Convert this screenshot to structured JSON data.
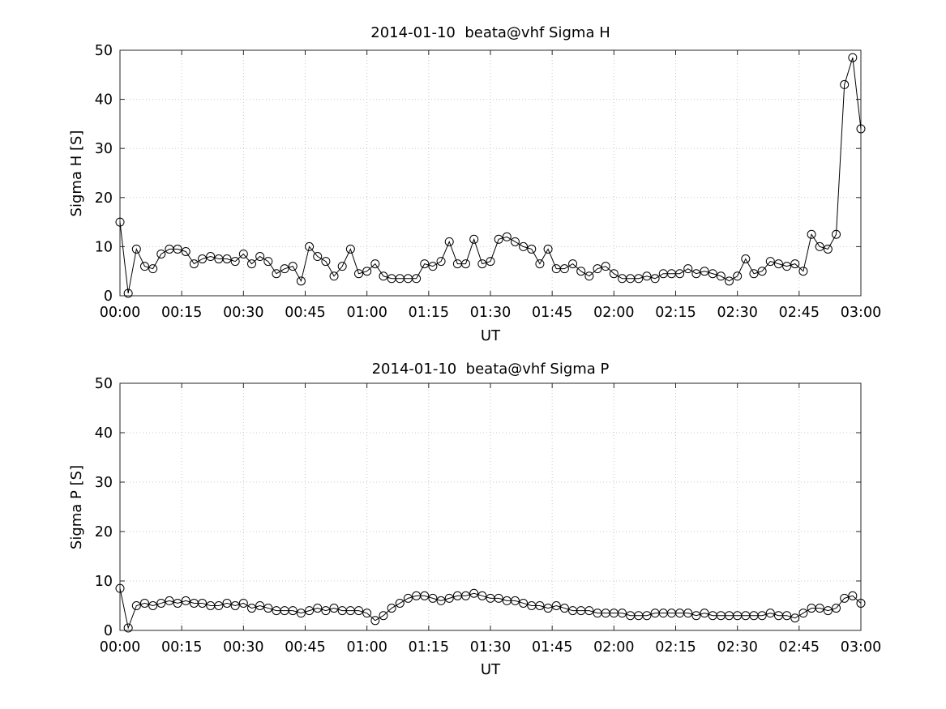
{
  "figure": {
    "background": "#ffffff",
    "axes_color": "#262626",
    "grid_color": "#c8c8c8"
  },
  "chart_data": [
    {
      "type": "line",
      "title": "2014-01-10  beata@vhf Sigma H",
      "xlabel": "UT",
      "ylabel": "Sigma H [S]",
      "xlim": [
        0,
        180
      ],
      "ylim": [
        0,
        50
      ],
      "xticks": [
        0,
        15,
        30,
        45,
        60,
        75,
        90,
        105,
        120,
        135,
        150,
        165,
        180
      ],
      "xtick_labels": [
        "00:00",
        "00:15",
        "00:30",
        "00:45",
        "01:00",
        "01:15",
        "01:30",
        "01:45",
        "02:00",
        "02:15",
        "02:30",
        "02:45",
        "03:00"
      ],
      "yticks": [
        0,
        10,
        20,
        30,
        40,
        50
      ],
      "grid": true,
      "legend": "none",
      "marker": "circle",
      "line_color": "#000000",
      "x_minutes": [
        0,
        2,
        4,
        6,
        8,
        10,
        12,
        14,
        16,
        18,
        20,
        22,
        24,
        26,
        28,
        30,
        32,
        34,
        36,
        38,
        40,
        42,
        44,
        46,
        48,
        50,
        52,
        54,
        56,
        58,
        60,
        62,
        64,
        66,
        68,
        70,
        72,
        74,
        76,
        78,
        80,
        82,
        84,
        86,
        88,
        90,
        92,
        94,
        96,
        98,
        100,
        102,
        104,
        106,
        108,
        110,
        112,
        114,
        116,
        118,
        120,
        122,
        124,
        126,
        128,
        130,
        132,
        134,
        136,
        138,
        140,
        142,
        144,
        146,
        148,
        150,
        152,
        154,
        156,
        158,
        160,
        162,
        164,
        166,
        168,
        170,
        172,
        174,
        176,
        178,
        180
      ],
      "values": [
        15,
        0.5,
        9.5,
        6,
        5.5,
        8.5,
        9.5,
        9.5,
        9,
        6.5,
        7.5,
        8,
        7.5,
        7.5,
        7,
        8.5,
        6.5,
        8,
        7,
        4.5,
        5.5,
        6,
        3,
        10,
        8,
        7,
        4,
        6,
        9.5,
        4.5,
        5,
        6.5,
        4,
        3.5,
        3.5,
        3.5,
        3.5,
        6.5,
        6,
        7,
        11,
        6.5,
        6.5,
        11.5,
        6.5,
        7,
        11.5,
        12,
        11,
        10,
        9.5,
        6.5,
        9.5,
        5.5,
        5.5,
        6.5,
        5,
        4,
        5.5,
        6,
        4.5,
        3.5,
        3.5,
        3.5,
        4,
        3.5,
        4.5,
        4.5,
        4.5,
        5.5,
        4.5,
        5,
        4.5,
        4,
        3,
        4,
        7.5,
        4.5,
        5,
        7,
        6.5,
        6,
        6.5,
        5,
        12.5,
        10,
        9.5,
        12.5,
        43,
        48.5,
        34
      ]
    },
    {
      "type": "line",
      "title": "2014-01-10  beata@vhf Sigma P",
      "xlabel": "UT",
      "ylabel": "Sigma P [S]",
      "xlim": [
        0,
        180
      ],
      "ylim": [
        0,
        50
      ],
      "xticks": [
        0,
        15,
        30,
        45,
        60,
        75,
        90,
        105,
        120,
        135,
        150,
        165,
        180
      ],
      "xtick_labels": [
        "00:00",
        "00:15",
        "00:30",
        "00:45",
        "01:00",
        "01:15",
        "01:30",
        "01:45",
        "02:00",
        "02:15",
        "02:30",
        "02:45",
        "03:00"
      ],
      "yticks": [
        0,
        10,
        20,
        30,
        40,
        50
      ],
      "grid": true,
      "legend": "none",
      "marker": "circle",
      "line_color": "#000000",
      "x_minutes": [
        0,
        2,
        4,
        6,
        8,
        10,
        12,
        14,
        16,
        18,
        20,
        22,
        24,
        26,
        28,
        30,
        32,
        34,
        36,
        38,
        40,
        42,
        44,
        46,
        48,
        50,
        52,
        54,
        56,
        58,
        60,
        62,
        64,
        66,
        68,
        70,
        72,
        74,
        76,
        78,
        80,
        82,
        84,
        86,
        88,
        90,
        92,
        94,
        96,
        98,
        100,
        102,
        104,
        106,
        108,
        110,
        112,
        114,
        116,
        118,
        120,
        122,
        124,
        126,
        128,
        130,
        132,
        134,
        136,
        138,
        140,
        142,
        144,
        146,
        148,
        150,
        152,
        154,
        156,
        158,
        160,
        162,
        164,
        166,
        168,
        170,
        172,
        174,
        176,
        178,
        180
      ],
      "values": [
        8.5,
        0.5,
        5,
        5.5,
        5,
        5.5,
        6,
        5.5,
        6,
        5.5,
        5.5,
        5,
        5,
        5.5,
        5,
        5.5,
        4.5,
        5,
        4.5,
        4,
        4,
        4,
        3.5,
        4,
        4.5,
        4,
        4.5,
        4,
        4,
        4,
        3.5,
        2,
        3,
        4.5,
        5.5,
        6.5,
        7,
        7,
        6.5,
        6,
        6.5,
        7,
        7,
        7.5,
        7,
        6.5,
        6.5,
        6,
        6,
        5.5,
        5,
        5,
        4.5,
        5,
        4.5,
        4,
        4,
        4,
        3.5,
        3.5,
        3.5,
        3.5,
        3,
        3,
        3,
        3.5,
        3.5,
        3.5,
        3.5,
        3.5,
        3,
        3.5,
        3,
        3,
        3,
        3,
        3,
        3,
        3,
        3.5,
        3,
        3,
        2.5,
        3.5,
        4.5,
        4.5,
        4,
        4.5,
        6.5,
        7,
        5.5
      ]
    }
  ]
}
